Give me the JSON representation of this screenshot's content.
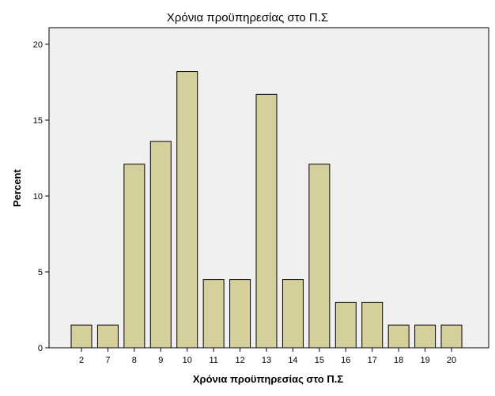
{
  "chart_data": {
    "type": "bar",
    "title": "Χρόνια προϋπηρεσίας στο Π.Σ",
    "xlabel": "Χρόνια προϋπηρεσίας στο Π.Σ",
    "ylabel": "Percent",
    "categories": [
      "2",
      "7",
      "8",
      "9",
      "10",
      "11",
      "12",
      "13",
      "14",
      "15",
      "16",
      "17",
      "18",
      "19",
      "20"
    ],
    "values": [
      1.5,
      1.5,
      12.1,
      13.6,
      18.2,
      4.5,
      4.5,
      16.7,
      4.5,
      12.1,
      3.0,
      3.0,
      1.5,
      1.5,
      1.5
    ],
    "ylim": [
      0,
      20
    ],
    "yticks": [
      "0",
      "5",
      "10",
      "15",
      "20"
    ],
    "grid": false,
    "legend": "none",
    "colors": {
      "plot_background": "#f0f0f0",
      "bar_fill": "#d5cf9b",
      "bar_stroke": "#000000",
      "frame": "#000000"
    }
  }
}
